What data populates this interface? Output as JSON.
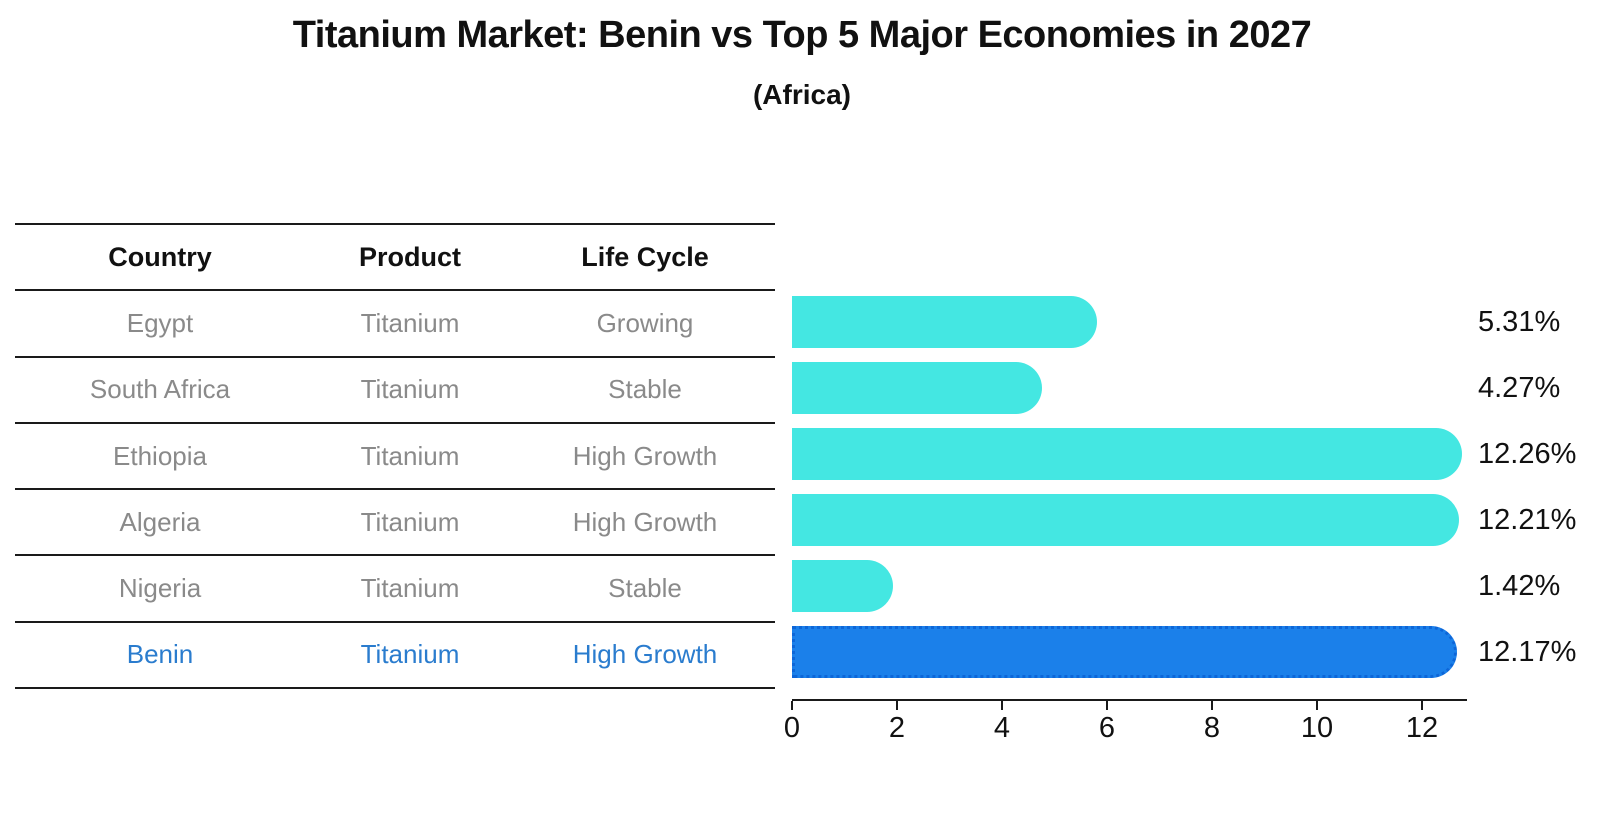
{
  "title": "Titanium Market: Benin vs Top 5 Major Economies in 2027",
  "subtitle": "(Africa)",
  "table": {
    "headers": [
      "Country",
      "Product",
      "Life Cycle"
    ],
    "rows": [
      {
        "country": "Egypt",
        "product": "Titanium",
        "life_cycle": "Growing",
        "highlight": false
      },
      {
        "country": "South Africa",
        "product": "Titanium",
        "life_cycle": "Stable",
        "highlight": false
      },
      {
        "country": "Ethiopia",
        "product": "Titanium",
        "life_cycle": "High Growth",
        "highlight": false
      },
      {
        "country": "Algeria",
        "product": "Titanium",
        "life_cycle": "High Growth",
        "highlight": false
      },
      {
        "country": "Nigeria",
        "product": "Titanium",
        "life_cycle": "Stable",
        "highlight": false
      },
      {
        "country": "Benin",
        "product": "Titanium",
        "life_cycle": "High Growth",
        "highlight": true
      }
    ]
  },
  "chart_data": {
    "type": "bar",
    "orientation": "horizontal",
    "categories": [
      "Egypt",
      "South Africa",
      "Ethiopia",
      "Algeria",
      "Nigeria",
      "Benin"
    ],
    "values": [
      5.31,
      4.27,
      12.26,
      12.21,
      1.42,
      12.17
    ],
    "labels": [
      "5.31%",
      "4.27%",
      "12.26%",
      "12.21%",
      "1.42%",
      "12.17%"
    ],
    "xlim": [
      0,
      12.8
    ],
    "x_ticks": [
      0,
      2,
      4,
      6,
      8,
      10,
      12
    ],
    "grid": false,
    "legend": "none",
    "bar_color": "#44e7e2",
    "highlight_color": "#1b80ea",
    "highlight_index": 5,
    "highlight_text_color": "#2a7cce"
  }
}
